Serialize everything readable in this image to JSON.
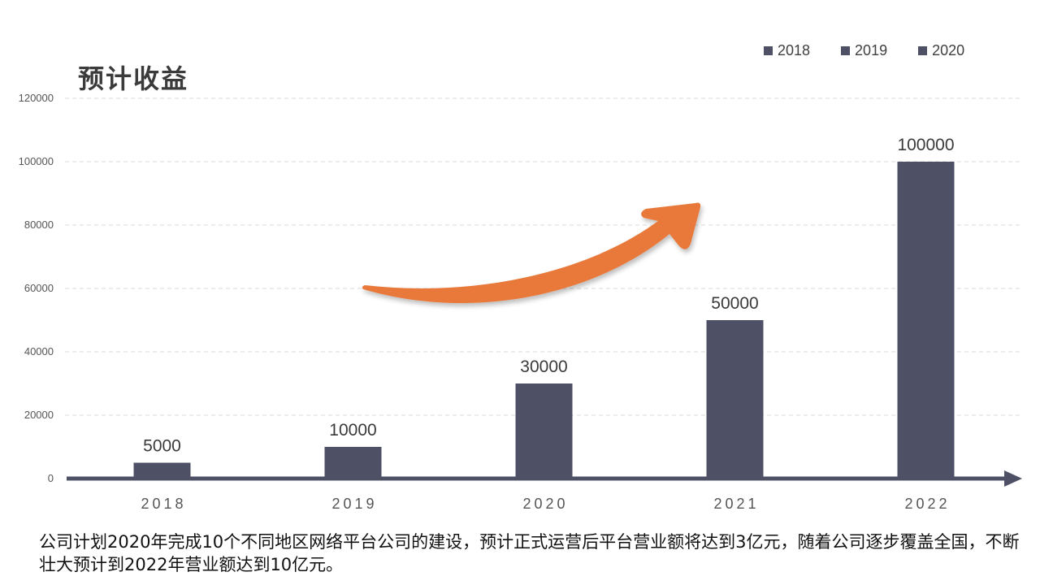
{
  "title": "预计收益",
  "legend": [
    {
      "label": "2018",
      "color": "#4e5066"
    },
    {
      "label": "2019",
      "color": "#4e5066"
    },
    {
      "label": "2020",
      "color": "#4e5066"
    }
  ],
  "caption": "公司计划2020年完成10个不同地区网络平台公司的建设，预计正式运营后平台营业额将达到3亿元，随着公司逐步覆盖全国，不断壮大预计到2022年营业额达到10亿元。",
  "chart_data": {
    "type": "bar",
    "categories": [
      "2018",
      "2019",
      "2020",
      "2021",
      "2022"
    ],
    "values": [
      5000,
      10000,
      30000,
      50000,
      100000
    ],
    "data_labels": [
      "5000",
      "10000",
      "30000",
      "50000",
      "100000"
    ],
    "y_ticks": [
      "0",
      "20000",
      "40000",
      "60000",
      "80000",
      "100000",
      "120000"
    ],
    "ylim": [
      0,
      120000
    ],
    "title": "预计收益",
    "grid": true,
    "legend_position": "top-right",
    "bar_color": "#4e5066",
    "axis_color": "#4e5066",
    "arrow_color": "#e8793a"
  }
}
